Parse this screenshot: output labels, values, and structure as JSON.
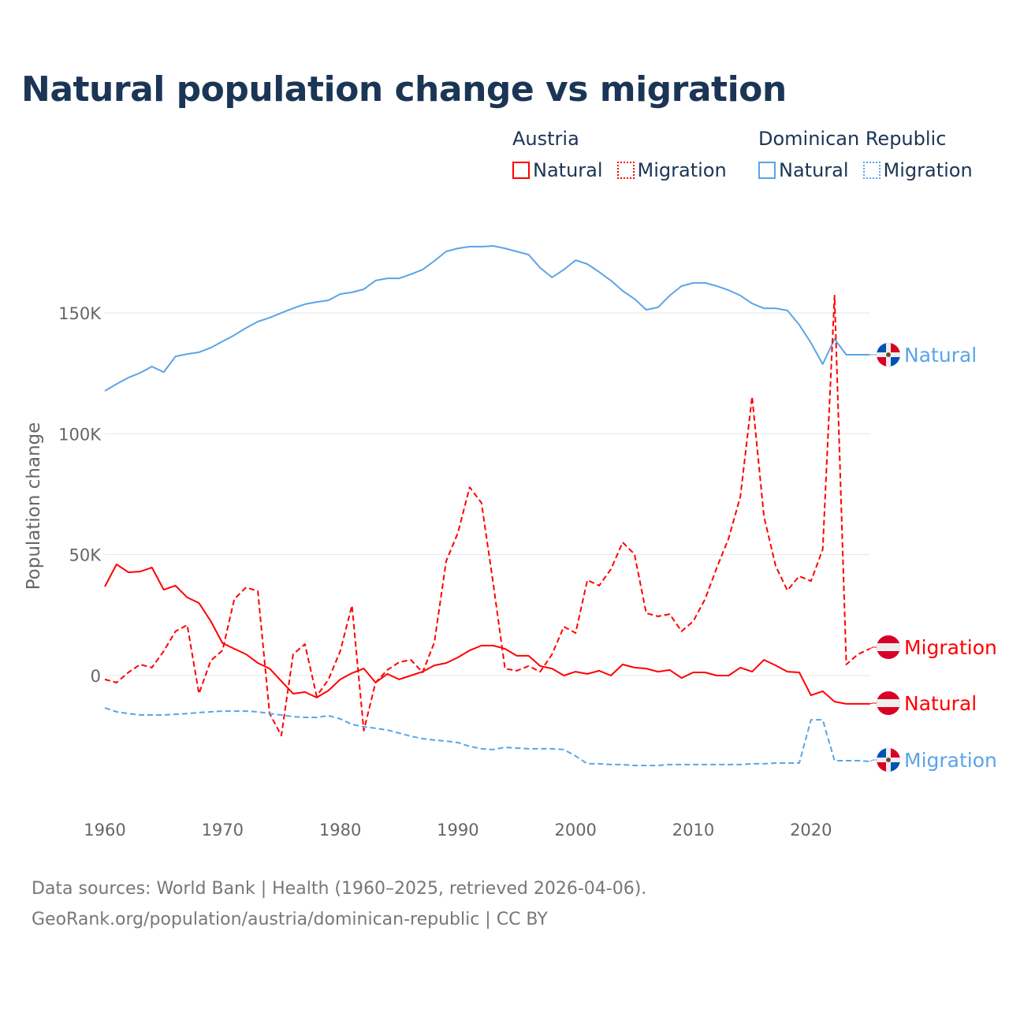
{
  "title": "Natural population change vs migration",
  "legend": [
    {
      "country": "Austria",
      "color": "#ff0000",
      "items": [
        "Natural",
        "Migration"
      ]
    },
    {
      "country": "Dominican Republic",
      "color": "#5ba4e8",
      "items": [
        "Natural",
        "Migration"
      ]
    }
  ],
  "footer": {
    "line1": "Data sources: World Bank | Health (1960–2025, retrieved 2026-04-06).",
    "line2": "GeoRank.org/population/austria/dominican-republic | CC BY"
  },
  "chart_data": {
    "type": "line",
    "title": "Natural population change vs migration",
    "xlabel": "",
    "ylabel": "Population change",
    "xlim": [
      1960,
      2025
    ],
    "ylim": [
      -50000,
      175000
    ],
    "x_ticks": [
      "1960",
      "1970",
      "1980",
      "1990",
      "2000",
      "2010",
      "2020"
    ],
    "y_ticks": [
      {
        "v": 0,
        "label": "0"
      },
      {
        "v": 50000,
        "label": "50K"
      },
      {
        "v": 100000,
        "label": "100K"
      },
      {
        "v": 150000,
        "label": "150K"
      }
    ],
    "grid": true,
    "x_start": 1960,
    "series": [
      {
        "name": "Dominican Republic Natural",
        "label": "Natural",
        "flag": "dominican-republic",
        "color": "#5ba4e8",
        "dash": false,
        "values": [
          117.7,
          120.6,
          123.2,
          125.2,
          127.8,
          125.5,
          132.0,
          133.0,
          133.7,
          135.6,
          138.2,
          140.8,
          143.8,
          146.4,
          148.0,
          150.0,
          151.9,
          153.6,
          154.5,
          155.2,
          157.8,
          158.5,
          159.8,
          163.4,
          164.3,
          164.3,
          166.0,
          167.9,
          171.5,
          175.4,
          176.7,
          177.4,
          177.4,
          177.7,
          176.7,
          175.4,
          174.1,
          168.6,
          164.7,
          167.9,
          171.8,
          170.2,
          166.9,
          163.4,
          159.1,
          155.8,
          151.3,
          152.3,
          157.2,
          161.1,
          162.4,
          162.4,
          161.1,
          159.4,
          157.2,
          153.9,
          151.9,
          151.9,
          151.0,
          145.1,
          137.6,
          128.8,
          139.2,
          132.7,
          132.7,
          132.7
        ]
      },
      {
        "name": "Austria Migration",
        "label": "Migration",
        "flag": "austria",
        "color": "#ff0000",
        "dash": true,
        "values": [
          -1.6,
          -2.9,
          1.3,
          4.6,
          3.3,
          10.1,
          18.3,
          20.9,
          -7.5,
          6.2,
          10.4,
          31.6,
          36.5,
          34.9,
          -15.7,
          -24.8,
          8.8,
          13.0,
          -8.5,
          -1.6,
          10.1,
          29.0,
          -22.8,
          -2.9,
          2.3,
          5.5,
          6.5,
          1.3,
          13.7,
          47.3,
          59.0,
          77.9,
          71.4,
          38.1,
          2.9,
          2.0,
          3.9,
          1.6,
          8.8,
          20.2,
          17.6,
          39.5,
          37.2,
          44.0,
          55.1,
          50.2,
          25.8,
          24.5,
          25.4,
          18.3,
          22.5,
          31.6,
          44.7,
          56.7,
          74.0,
          115.4,
          65.9,
          45.3,
          35.2,
          41.1,
          39.1,
          52.2,
          157.2,
          4.6,
          8.8,
          11.1
        ]
      },
      {
        "name": "Austria Natural",
        "label": "Natural",
        "flag": "austria",
        "color": "#ff0000",
        "dash": false,
        "values": [
          36.8,
          46.0,
          42.7,
          43.0,
          44.7,
          35.5,
          37.2,
          32.3,
          30.0,
          22.5,
          13.4,
          11.1,
          8.8,
          5.2,
          2.9,
          -2.3,
          -7.5,
          -6.8,
          -9.1,
          -6.2,
          -1.6,
          1.0,
          2.9,
          -2.9,
          0.7,
          -1.6,
          0,
          1.6,
          4.2,
          5.2,
          7.5,
          10.4,
          12.4,
          12.4,
          11.1,
          8.2,
          8.2,
          3.9,
          2.9,
          0,
          1.6,
          0.7,
          2.0,
          0,
          4.6,
          3.3,
          2.9,
          1.6,
          2.3,
          -1.0,
          1.3,
          1.3,
          0,
          0,
          3.3,
          1.6,
          6.5,
          4.2,
          1.6,
          1.3,
          -8.2,
          -6.5,
          -10.8,
          -11.7,
          -11.7,
          -11.7
        ]
      },
      {
        "name": "Dominican Republic Migration",
        "label": "Migration",
        "flag": "dominican-republic",
        "color": "#5ba4e8",
        "dash": true,
        "values": [
          -13.4,
          -15.0,
          -15.7,
          -16.3,
          -16.3,
          -16.3,
          -16.0,
          -15.7,
          -15.3,
          -15.0,
          -14.7,
          -14.7,
          -14.7,
          -15.0,
          -15.7,
          -16.3,
          -17.0,
          -17.3,
          -17.3,
          -16.6,
          -17.9,
          -20.2,
          -21.2,
          -21.8,
          -22.5,
          -23.8,
          -25.1,
          -26.1,
          -26.7,
          -27.1,
          -27.7,
          -29.3,
          -30.3,
          -30.6,
          -29.7,
          -30.0,
          -30.3,
          -30.3,
          -30.3,
          -30.6,
          -33.3,
          -36.5,
          -36.5,
          -36.8,
          -36.8,
          -37.2,
          -37.2,
          -37.2,
          -36.8,
          -36.8,
          -36.8,
          -36.8,
          -36.8,
          -36.8,
          -36.8,
          -36.5,
          -36.5,
          -36.2,
          -36.2,
          -36.2,
          -18.3,
          -18.3,
          -35.2,
          -35.2,
          -35.2,
          -35.5
        ]
      }
    ],
    "value_unit": "thousands"
  }
}
